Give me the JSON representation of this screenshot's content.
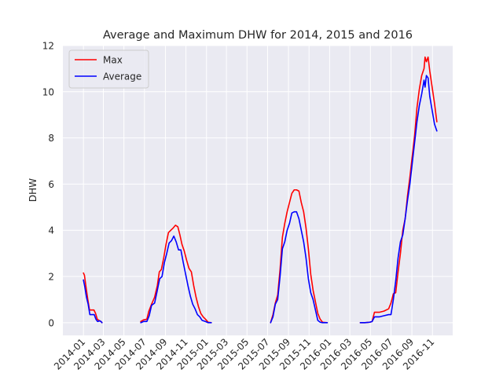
{
  "chart_data": {
    "type": "line",
    "title": "Average and Maximum DHW for 2014, 2015 and 2016",
    "xlabel": "",
    "ylabel": "DHW",
    "ylim": [
      -0.55,
      12.0
    ],
    "yticks": [
      0,
      2,
      4,
      6,
      8,
      10,
      12
    ],
    "xlim": [
      "2013-11-01",
      "2016-12-31"
    ],
    "xticks": [
      "2014-01",
      "2014-03",
      "2014-05",
      "2014-07",
      "2014-09",
      "2014-11",
      "2015-01",
      "2015-03",
      "2015-05",
      "2015-07",
      "2015-09",
      "2015-11",
      "2016-01",
      "2016-03",
      "2016-05",
      "2016-07",
      "2016-09",
      "2016-11"
    ],
    "grid": true,
    "legend": "top-left",
    "series": [
      {
        "name": "Max",
        "color": "#ff0000",
        "segments": [
          [
            [
              "2014-01-01",
              2.15
            ],
            [
              "2014-01-04",
              2.05
            ],
            [
              "2014-01-09",
              1.5
            ],
            [
              "2014-01-14",
              1.0
            ],
            [
              "2014-01-19",
              0.55
            ],
            [
              "2014-01-26",
              0.55
            ],
            [
              "2014-02-01",
              0.55
            ],
            [
              "2014-02-06",
              0.4
            ],
            [
              "2014-02-11",
              0.15
            ],
            [
              "2014-02-16",
              0.1
            ],
            [
              "2014-02-22",
              0.05
            ],
            [
              "2014-02-25",
              0.0
            ]
          ],
          [
            [
              "2014-06-20",
              0.05
            ],
            [
              "2014-06-28",
              0.12
            ],
            [
              "2014-07-08",
              0.15
            ],
            [
              "2014-07-14",
              0.5
            ],
            [
              "2014-07-22",
              0.8
            ],
            [
              "2014-07-31",
              1.1
            ],
            [
              "2014-08-08",
              1.6
            ],
            [
              "2014-08-14",
              2.2
            ],
            [
              "2014-08-20",
              2.3
            ],
            [
              "2014-08-27",
              2.8
            ],
            [
              "2014-09-03",
              3.4
            ],
            [
              "2014-09-10",
              3.9
            ],
            [
              "2014-09-17",
              4.0
            ],
            [
              "2014-09-24",
              4.1
            ],
            [
              "2014-10-01",
              4.22
            ],
            [
              "2014-10-08",
              4.15
            ],
            [
              "2014-10-14",
              3.8
            ],
            [
              "2014-10-20",
              3.4
            ],
            [
              "2014-10-27",
              3.1
            ],
            [
              "2014-11-03",
              2.7
            ],
            [
              "2014-11-10",
              2.35
            ],
            [
              "2014-11-17",
              2.2
            ],
            [
              "2014-11-24",
              1.6
            ],
            [
              "2014-12-01",
              1.1
            ],
            [
              "2014-12-08",
              0.7
            ],
            [
              "2014-12-15",
              0.4
            ],
            [
              "2014-12-22",
              0.25
            ],
            [
              "2014-12-29",
              0.15
            ],
            [
              "2015-01-06",
              0.02
            ],
            [
              "2015-01-15",
              0.0
            ]
          ],
          [
            [
              "2015-07-10",
              0.0
            ],
            [
              "2015-07-17",
              0.35
            ],
            [
              "2015-07-24",
              0.85
            ],
            [
              "2015-07-31",
              1.2
            ],
            [
              "2015-08-07",
              2.3
            ],
            [
              "2015-08-14",
              3.7
            ],
            [
              "2015-08-21",
              4.3
            ],
            [
              "2015-08-28",
              4.8
            ],
            [
              "2015-09-04",
              5.2
            ],
            [
              "2015-09-11",
              5.6
            ],
            [
              "2015-09-18",
              5.75
            ],
            [
              "2015-09-25",
              5.75
            ],
            [
              "2015-10-02",
              5.7
            ],
            [
              "2015-10-09",
              5.2
            ],
            [
              "2015-10-16",
              4.8
            ],
            [
              "2015-10-23",
              4.1
            ],
            [
              "2015-10-30",
              3.2
            ],
            [
              "2015-11-06",
              2.1
            ],
            [
              "2015-11-13",
              1.4
            ],
            [
              "2015-11-20",
              0.9
            ],
            [
              "2015-11-27",
              0.4
            ],
            [
              "2015-12-04",
              0.15
            ],
            [
              "2015-12-11",
              0.02
            ],
            [
              "2015-12-25",
              0.0
            ]
          ],
          [
            [
              "2016-04-01",
              0.0
            ],
            [
              "2016-04-15",
              0.0
            ],
            [
              "2016-04-29",
              0.02
            ],
            [
              "2016-05-06",
              0.05
            ],
            [
              "2016-05-13",
              0.45
            ],
            [
              "2016-05-27",
              0.45
            ],
            [
              "2016-06-10",
              0.5
            ],
            [
              "2016-06-24",
              0.6
            ],
            [
              "2016-07-01",
              0.85
            ],
            [
              "2016-07-08",
              1.25
            ],
            [
              "2016-07-15",
              1.3
            ],
            [
              "2016-07-22",
              2.2
            ],
            [
              "2016-07-29",
              3.0
            ],
            [
              "2016-08-05",
              4.0
            ],
            [
              "2016-08-12",
              4.5
            ],
            [
              "2016-08-19",
              5.5
            ],
            [
              "2016-08-26",
              6.3
            ],
            [
              "2016-09-02",
              7.2
            ],
            [
              "2016-09-09",
              8.1
            ],
            [
              "2016-09-16",
              9.3
            ],
            [
              "2016-09-23",
              10.1
            ],
            [
              "2016-09-30",
              10.7
            ],
            [
              "2016-10-07",
              11.0
            ],
            [
              "2016-10-10",
              11.5
            ],
            [
              "2016-10-14",
              11.3
            ],
            [
              "2016-10-19",
              11.5
            ],
            [
              "2016-10-24",
              10.9
            ],
            [
              "2016-10-31",
              10.2
            ],
            [
              "2016-11-07",
              9.5
            ],
            [
              "2016-11-14",
              8.7
            ]
          ]
        ]
      },
      {
        "name": "Average",
        "color": "#0000ff",
        "segments": [
          [
            [
              "2014-01-01",
              1.85
            ],
            [
              "2014-01-05",
              1.55
            ],
            [
              "2014-01-10",
              1.1
            ],
            [
              "2014-01-15",
              0.8
            ],
            [
              "2014-01-20",
              0.35
            ],
            [
              "2014-01-27",
              0.35
            ],
            [
              "2014-02-02",
              0.35
            ],
            [
              "2014-02-07",
              0.15
            ],
            [
              "2014-02-12",
              0.05
            ],
            [
              "2014-02-18",
              0.08
            ],
            [
              "2014-02-22",
              0.05
            ],
            [
              "2014-02-25",
              0.0
            ]
          ],
          [
            [
              "2014-06-20",
              0.0
            ],
            [
              "2014-06-28",
              0.05
            ],
            [
              "2014-07-08",
              0.05
            ],
            [
              "2014-07-15",
              0.3
            ],
            [
              "2014-07-22",
              0.75
            ],
            [
              "2014-07-31",
              0.85
            ],
            [
              "2014-08-08",
              1.4
            ],
            [
              "2014-08-15",
              1.9
            ],
            [
              "2014-08-22",
              2.0
            ],
            [
              "2014-08-29",
              2.6
            ],
            [
              "2014-09-05",
              3.0
            ],
            [
              "2014-09-12",
              3.45
            ],
            [
              "2014-09-19",
              3.55
            ],
            [
              "2014-09-26",
              3.75
            ],
            [
              "2014-10-03",
              3.5
            ],
            [
              "2014-10-10",
              3.15
            ],
            [
              "2014-10-17",
              3.15
            ],
            [
              "2014-10-24",
              2.6
            ],
            [
              "2014-10-31",
              2.1
            ],
            [
              "2014-11-07",
              1.6
            ],
            [
              "2014-11-14",
              1.15
            ],
            [
              "2014-11-21",
              0.8
            ],
            [
              "2014-11-28",
              0.6
            ],
            [
              "2014-12-05",
              0.35
            ],
            [
              "2014-12-12",
              0.25
            ],
            [
              "2014-12-19",
              0.1
            ],
            [
              "2014-12-29",
              0.05
            ],
            [
              "2015-01-06",
              0.0
            ],
            [
              "2015-01-15",
              0.0
            ]
          ],
          [
            [
              "2015-07-10",
              0.0
            ],
            [
              "2015-07-17",
              0.25
            ],
            [
              "2015-07-24",
              0.8
            ],
            [
              "2015-07-31",
              1.0
            ],
            [
              "2015-08-07",
              2.0
            ],
            [
              "2015-08-14",
              3.2
            ],
            [
              "2015-08-21",
              3.5
            ],
            [
              "2015-08-28",
              4.0
            ],
            [
              "2015-09-04",
              4.3
            ],
            [
              "2015-09-11",
              4.75
            ],
            [
              "2015-09-18",
              4.8
            ],
            [
              "2015-09-25",
              4.8
            ],
            [
              "2015-10-02",
              4.5
            ],
            [
              "2015-10-09",
              4.0
            ],
            [
              "2015-10-16",
              3.5
            ],
            [
              "2015-10-23",
              2.8
            ],
            [
              "2015-10-30",
              1.9
            ],
            [
              "2015-11-06",
              1.3
            ],
            [
              "2015-11-13",
              1.0
            ],
            [
              "2015-11-20",
              0.55
            ],
            [
              "2015-11-27",
              0.1
            ],
            [
              "2015-12-04",
              0.02
            ],
            [
              "2015-12-11",
              0.0
            ],
            [
              "2015-12-25",
              0.0
            ]
          ],
          [
            [
              "2016-04-01",
              0.0
            ],
            [
              "2016-04-15",
              0.0
            ],
            [
              "2016-04-29",
              0.02
            ],
            [
              "2016-05-06",
              0.05
            ],
            [
              "2016-05-13",
              0.25
            ],
            [
              "2016-05-27",
              0.25
            ],
            [
              "2016-06-10",
              0.3
            ],
            [
              "2016-06-24",
              0.35
            ],
            [
              "2016-07-01",
              0.35
            ],
            [
              "2016-07-08",
              1.0
            ],
            [
              "2016-07-15",
              1.8
            ],
            [
              "2016-07-22",
              2.8
            ],
            [
              "2016-07-29",
              3.5
            ],
            [
              "2016-08-05",
              3.8
            ],
            [
              "2016-08-12",
              4.5
            ],
            [
              "2016-08-19",
              5.3
            ],
            [
              "2016-08-26",
              6.0
            ],
            [
              "2016-09-02",
              6.9
            ],
            [
              "2016-09-09",
              7.8
            ],
            [
              "2016-09-16",
              8.7
            ],
            [
              "2016-09-23",
              9.4
            ],
            [
              "2016-09-30",
              9.9
            ],
            [
              "2016-10-07",
              10.5
            ],
            [
              "2016-10-10",
              10.2
            ],
            [
              "2016-10-14",
              10.7
            ],
            [
              "2016-10-19",
              10.6
            ],
            [
              "2016-10-24",
              9.8
            ],
            [
              "2016-10-31",
              9.2
            ],
            [
              "2016-11-07",
              8.6
            ],
            [
              "2016-11-14",
              8.3
            ]
          ]
        ]
      }
    ]
  }
}
